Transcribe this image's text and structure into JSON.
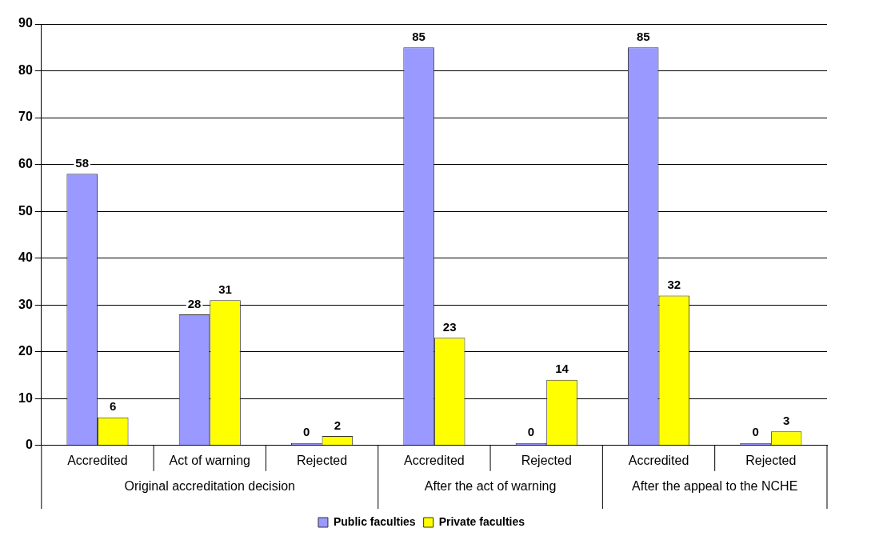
{
  "chart_data": {
    "type": "bar",
    "categories": [
      "Accredited",
      "Act of warning",
      "Rejected",
      "Accredited",
      "Rejected",
      "Accredited",
      "Rejected"
    ],
    "series": [
      {
        "name": "Public faculties",
        "color": "#9999ff",
        "values": [
          58,
          28,
          0,
          85,
          0,
          85,
          0
        ]
      },
      {
        "name": "Private faculties",
        "color": "#ffff00",
        "values": [
          6,
          31,
          2,
          23,
          14,
          32,
          3
        ]
      }
    ],
    "annotations": [
      "Original accreditation decision",
      "After the act of warning",
      "After the appeal to the NCHE"
    ],
    "ylim": [
      0,
      90
    ],
    "yticks": [
      0,
      10,
      20,
      30,
      40,
      50,
      60,
      70,
      80,
      90
    ],
    "grid": "y",
    "legend": "bottom",
    "data_labels": true
  }
}
